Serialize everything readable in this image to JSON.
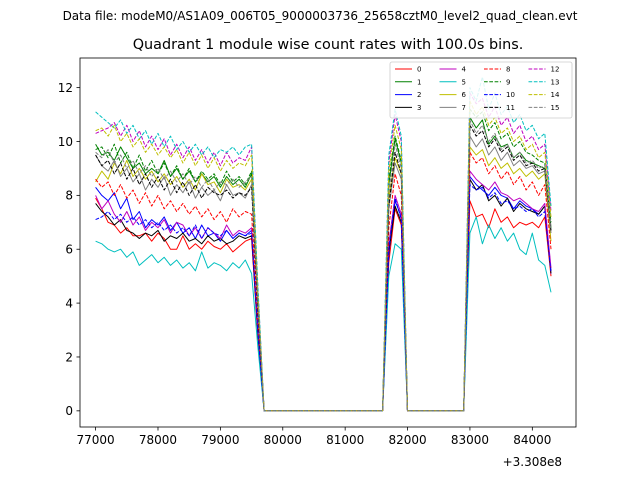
{
  "chart_data": {
    "type": "line",
    "suptitle": "Data file: modeM0/AS1A09_006T05_9000003736_25658cztM0_level2_quad_clean.evt",
    "title": "Quadrant 1 module wise count rates with 100.0s bins.",
    "xlabel": "",
    "ylabel": "",
    "x_offset_text": "+3.308e8",
    "xlim": [
      76750,
      84700
    ],
    "ylim": [
      -0.6,
      13.1
    ],
    "x_ticks": [
      77000,
      78000,
      79000,
      80000,
      81000,
      82000,
      83000,
      84000
    ],
    "y_ticks": [
      0,
      2,
      4,
      6,
      8,
      10,
      12
    ],
    "legend_position": "top-right",
    "legend_columns": 4,
    "x": [
      77000,
      77100,
      77200,
      77300,
      77400,
      77500,
      77600,
      77700,
      77800,
      77900,
      78000,
      78100,
      78200,
      78300,
      78400,
      78500,
      78600,
      78700,
      78800,
      78900,
      79000,
      79100,
      79200,
      79300,
      79400,
      79500,
      79600,
      79700,
      81600,
      81700,
      81800,
      81900,
      82000,
      82100,
      82900,
      83000,
      83100,
      83200,
      83300,
      83400,
      83500,
      83600,
      83700,
      83800,
      83900,
      84000,
      84100,
      84200,
      84300
    ],
    "series": [
      {
        "name": "0",
        "color": "#ff0000",
        "dash": "solid",
        "values": [
          7.9,
          7.5,
          7.0,
          6.9,
          6.6,
          6.8,
          6.5,
          6.5,
          6.6,
          6.3,
          6.6,
          6.4,
          6.0,
          6.0,
          6.5,
          6.0,
          6.2,
          6.0,
          6.3,
          6.1,
          6.0,
          6.2,
          5.9,
          6.1,
          6.3,
          6.4,
          2.8,
          0.0,
          0.0,
          5.5,
          7.5,
          6.9,
          0.0,
          0.0,
          0.0,
          7.8,
          7.2,
          7.3,
          6.8,
          7.5,
          7.0,
          7.2,
          6.8,
          7.0,
          6.9,
          7.0,
          6.8,
          7.2,
          5.0
        ]
      },
      {
        "name": "1",
        "color": "#008000",
        "dash": "solid",
        "values": [
          9.9,
          9.5,
          9.6,
          9.3,
          9.8,
          9.4,
          9.0,
          9.2,
          8.8,
          9.0,
          8.8,
          9.3,
          8.7,
          9.0,
          8.6,
          8.9,
          8.5,
          8.8,
          8.5,
          8.7,
          8.3,
          8.7,
          8.4,
          8.6,
          8.3,
          8.8,
          4.2,
          0.0,
          0.0,
          8.4,
          10.1,
          9.2,
          0.0,
          0.0,
          0.0,
          10.9,
          10.5,
          10.8,
          9.9,
          10.2,
          9.8,
          9.9,
          9.4,
          9.6,
          9.3,
          9.2,
          9.1,
          9.0,
          6.8
        ]
      },
      {
        "name": "2",
        "color": "#0000ff",
        "dash": "solid",
        "values": [
          8.3,
          8.0,
          7.8,
          8.1,
          7.5,
          7.9,
          7.1,
          7.4,
          6.8,
          7.1,
          6.9,
          7.2,
          6.7,
          7.0,
          6.6,
          6.8,
          6.4,
          6.9,
          6.5,
          6.6,
          6.3,
          6.7,
          6.4,
          6.6,
          6.5,
          6.7,
          3.0,
          0.0,
          0.0,
          5.8,
          7.8,
          7.2,
          0.0,
          0.0,
          0.0,
          8.7,
          8.4,
          8.2,
          8.0,
          8.3,
          8.0,
          7.9,
          7.5,
          7.8,
          7.6,
          7.5,
          7.3,
          7.6,
          5.2
        ]
      },
      {
        "name": "3",
        "color": "#000000",
        "dash": "solid",
        "values": [
          7.7,
          7.4,
          7.2,
          6.9,
          7.1,
          6.7,
          6.6,
          6.4,
          6.6,
          6.5,
          6.7,
          6.3,
          6.5,
          6.4,
          6.6,
          6.3,
          6.4,
          6.2,
          6.5,
          6.3,
          6.4,
          6.2,
          6.3,
          6.5,
          6.4,
          6.5,
          2.9,
          0.0,
          0.0,
          5.9,
          7.6,
          7.0,
          0.0,
          0.0,
          0.0,
          8.6,
          8.2,
          8.4,
          7.8,
          8.0,
          7.6,
          7.9,
          7.4,
          7.7,
          7.5,
          7.4,
          7.3,
          7.6,
          5.1
        ]
      },
      {
        "name": "4",
        "color": "#bf00bf",
        "dash": "solid",
        "values": [
          8.0,
          7.5,
          7.8,
          7.3,
          7.0,
          7.4,
          6.9,
          7.2,
          6.7,
          7.0,
          6.8,
          7.1,
          6.6,
          7.0,
          6.9,
          6.5,
          6.8,
          6.4,
          6.8,
          6.6,
          6.4,
          6.9,
          6.5,
          6.7,
          6.6,
          6.8,
          3.1,
          0.0,
          0.0,
          6.2,
          8.0,
          7.3,
          0.0,
          0.0,
          0.0,
          8.9,
          8.6,
          8.4,
          8.2,
          8.5,
          8.1,
          8.0,
          7.8,
          7.9,
          7.7,
          7.5,
          7.4,
          7.7,
          5.3
        ]
      },
      {
        "name": "5",
        "color": "#00bfbf",
        "dash": "solid",
        "values": [
          6.3,
          6.2,
          6.0,
          5.9,
          6.0,
          5.7,
          5.9,
          5.4,
          5.6,
          5.8,
          5.5,
          5.7,
          5.4,
          5.6,
          5.3,
          5.5,
          5.2,
          5.9,
          5.3,
          5.5,
          5.4,
          5.2,
          5.5,
          5.3,
          5.6,
          5.1,
          2.4,
          0.0,
          0.0,
          5.0,
          6.2,
          6.0,
          0.0,
          0.0,
          0.0,
          6.6,
          7.2,
          6.2,
          6.9,
          6.4,
          6.8,
          6.3,
          6.6,
          6.0,
          5.8,
          6.6,
          5.6,
          5.4,
          4.4
        ]
      },
      {
        "name": "6",
        "color": "#bfbf00",
        "dash": "solid",
        "values": [
          8.5,
          8.9,
          8.6,
          9.2,
          8.8,
          9.3,
          8.7,
          9.0,
          8.6,
          8.9,
          8.5,
          8.8,
          8.4,
          8.7,
          8.3,
          8.6,
          8.2,
          8.8,
          8.4,
          8.5,
          8.1,
          8.6,
          8.3,
          8.4,
          8.2,
          8.6,
          4.0,
          0.0,
          0.0,
          7.9,
          9.4,
          8.8,
          0.0,
          0.0,
          0.0,
          9.8,
          9.5,
          9.7,
          9.1,
          9.4,
          9.0,
          9.2,
          8.8,
          9.0,
          8.7,
          8.9,
          8.6,
          8.8,
          6.3
        ]
      },
      {
        "name": "7",
        "color": "#808080",
        "dash": "solid",
        "values": [
          9.5,
          9.1,
          8.9,
          9.3,
          8.7,
          9.0,
          8.5,
          8.8,
          8.2,
          8.6,
          8.3,
          8.7,
          8.0,
          8.4,
          8.1,
          8.5,
          7.9,
          8.3,
          8.0,
          8.2,
          7.8,
          8.4,
          8.0,
          8.1,
          7.9,
          8.4,
          3.9,
          0.0,
          0.0,
          7.5,
          9.2,
          8.6,
          0.0,
          0.0,
          0.0,
          10.2,
          9.8,
          10.1,
          9.5,
          9.8,
          9.3,
          9.6,
          9.1,
          9.3,
          9.0,
          9.1,
          8.8,
          8.9,
          6.6
        ]
      },
      {
        "name": "8",
        "color": "#ff0000",
        "dash": "dashed",
        "values": [
          8.6,
          8.3,
          8.5,
          8.0,
          8.4,
          7.9,
          8.2,
          7.7,
          8.1,
          7.6,
          8.0,
          7.5,
          7.8,
          7.4,
          7.7,
          7.3,
          7.6,
          7.2,
          7.5,
          7.1,
          7.4,
          7.0,
          7.5,
          7.2,
          7.4,
          7.3,
          3.4,
          0.0,
          0.0,
          6.8,
          8.8,
          8.0,
          0.0,
          0.0,
          0.0,
          9.6,
          9.2,
          9.4,
          8.8,
          9.1,
          8.6,
          8.9,
          8.4,
          8.7,
          8.2,
          8.5,
          8.0,
          8.4,
          6.0
        ]
      },
      {
        "name": "9",
        "color": "#008000",
        "dash": "dashed",
        "values": [
          9.7,
          9.8,
          9.4,
          9.9,
          9.2,
          9.6,
          9.0,
          9.5,
          8.9,
          9.3,
          8.8,
          9.2,
          8.7,
          9.1,
          8.6,
          9.0,
          8.5,
          8.9,
          8.6,
          8.8,
          8.4,
          8.9,
          8.5,
          8.7,
          8.4,
          8.9,
          4.3,
          0.0,
          0.0,
          8.6,
          10.2,
          9.3,
          0.0,
          0.0,
          0.0,
          11.2,
          10.9,
          11.1,
          10.4,
          10.7,
          10.1,
          10.3,
          9.8,
          10.0,
          9.6,
          9.5,
          9.3,
          9.2,
          7.0
        ]
      },
      {
        "name": "10",
        "color": "#0000ff",
        "dash": "dashed",
        "values": [
          7.1,
          7.2,
          7.4,
          7.1,
          7.3,
          7.0,
          7.2,
          6.9,
          7.1,
          6.8,
          7.0,
          6.7,
          6.9,
          6.6,
          6.8,
          6.5,
          6.9,
          6.4,
          6.8,
          6.6,
          6.5,
          6.7,
          6.4,
          6.6,
          6.5,
          6.6,
          3.0,
          0.0,
          0.0,
          6.0,
          7.9,
          7.1,
          0.0,
          0.0,
          0.0,
          8.4,
          8.2,
          8.3,
          7.9,
          8.1,
          7.7,
          7.8,
          7.5,
          7.6,
          7.4,
          7.5,
          7.2,
          7.4,
          5.1
        ]
      },
      {
        "name": "11",
        "color": "#000000",
        "dash": "dashed",
        "values": [
          9.5,
          9.1,
          9.3,
          8.8,
          9.2,
          8.6,
          9.0,
          8.4,
          8.8,
          8.3,
          8.7,
          8.2,
          8.6,
          8.1,
          8.5,
          8.0,
          8.4,
          7.9,
          8.3,
          8.1,
          8.0,
          8.2,
          7.9,
          8.1,
          8.0,
          8.3,
          3.8,
          0.0,
          0.0,
          7.6,
          9.6,
          8.8,
          0.0,
          0.0,
          0.0,
          10.6,
          10.2,
          10.4,
          9.8,
          10.1,
          9.6,
          9.8,
          9.3,
          9.5,
          9.1,
          9.2,
          8.9,
          9.0,
          6.7
        ]
      },
      {
        "name": "12",
        "color": "#bf00bf",
        "dash": "dashed",
        "values": [
          10.3,
          10.4,
          10.5,
          10.7,
          10.2,
          10.6,
          10.0,
          10.4,
          9.8,
          10.2,
          9.7,
          10.1,
          9.5,
          9.9,
          9.4,
          9.8,
          9.3,
          9.7,
          9.2,
          9.6,
          9.1,
          9.6,
          9.2,
          9.4,
          9.3,
          9.8,
          4.6,
          0.0,
          0.0,
          9.2,
          11.0,
          10.0,
          0.0,
          0.0,
          0.0,
          11.8,
          11.4,
          11.6,
          10.9,
          11.3,
          10.6,
          10.9,
          10.3,
          10.6,
          10.0,
          10.2,
          9.7,
          9.9,
          7.4
        ]
      },
      {
        "name": "13",
        "color": "#00bfbf",
        "dash": "dashed",
        "values": [
          11.1,
          10.9,
          10.7,
          10.5,
          10.8,
          10.3,
          10.6,
          10.1,
          10.4,
          9.9,
          10.3,
          9.8,
          10.2,
          9.7,
          10.0,
          9.6,
          9.9,
          9.5,
          9.8,
          9.4,
          9.7,
          9.6,
          9.8,
          9.5,
          9.8,
          9.9,
          4.7,
          0.0,
          0.0,
          9.5,
          11.2,
          10.2,
          0.0,
          0.0,
          0.0,
          12.0,
          11.5,
          12.4,
          11.2,
          11.8,
          11.0,
          11.3,
          10.7,
          11.0,
          10.4,
          10.6,
          10.1,
          10.3,
          7.6
        ]
      },
      {
        "name": "14",
        "color": "#bfbf00",
        "dash": "dashed",
        "values": [
          10.4,
          10.5,
          10.2,
          10.6,
          10.0,
          10.3,
          9.8,
          10.1,
          9.6,
          9.9,
          9.5,
          9.8,
          9.4,
          9.7,
          9.2,
          9.6,
          9.1,
          9.5,
          9.0,
          9.4,
          8.9,
          9.3,
          9.0,
          9.2,
          9.1,
          9.5,
          4.4,
          0.0,
          0.0,
          8.9,
          10.6,
          9.7,
          0.0,
          0.0,
          0.0,
          11.5,
          11.0,
          11.3,
          10.6,
          10.9,
          10.3,
          10.5,
          10.0,
          10.2,
          9.7,
          9.9,
          9.4,
          9.6,
          7.2
        ]
      },
      {
        "name": "15",
        "color": "#808080",
        "dash": "dashed",
        "values": [
          9.6,
          9.4,
          9.7,
          9.2,
          9.5,
          9.0,
          9.3,
          8.8,
          9.1,
          8.7,
          9.0,
          8.6,
          8.9,
          8.5,
          8.8,
          8.4,
          8.7,
          8.3,
          8.6,
          8.2,
          8.5,
          8.4,
          8.6,
          8.3,
          8.5,
          8.7,
          4.1,
          0.0,
          0.0,
          8.1,
          9.9,
          9.0,
          0.0,
          0.0,
          0.0,
          10.8,
          10.3,
          10.6,
          10.0,
          10.3,
          9.7,
          9.9,
          9.4,
          9.6,
          9.2,
          9.3,
          9.0,
          9.1,
          6.8
        ]
      }
    ]
  }
}
